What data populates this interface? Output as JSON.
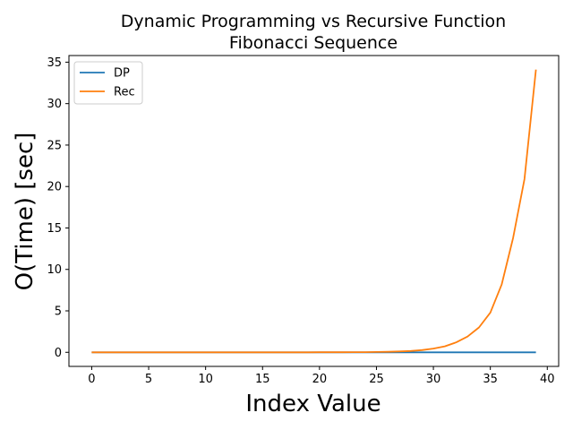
{
  "chart_data": {
    "type": "line",
    "title_line1": "Dynamic Programming vs Recursive Function",
    "title_line2": "Fibonacci Sequence",
    "xlabel": "Index Value",
    "ylabel": "O(Time) [sec]",
    "xlim": [
      -2,
      41
    ],
    "ylim": [
      -1.7,
      35.8
    ],
    "xticks": [
      "0",
      "5",
      "10",
      "15",
      "20",
      "25",
      "30",
      "35",
      "40"
    ],
    "yticks": [
      "0",
      "5",
      "10",
      "15",
      "20",
      "25",
      "30",
      "35"
    ],
    "grid": false,
    "legend_position": "top-left",
    "x": [
      0,
      1,
      2,
      3,
      4,
      5,
      6,
      7,
      8,
      9,
      10,
      11,
      12,
      13,
      14,
      15,
      16,
      17,
      18,
      19,
      20,
      21,
      22,
      23,
      24,
      25,
      26,
      27,
      28,
      29,
      30,
      31,
      32,
      33,
      34,
      35,
      36,
      37,
      38,
      39
    ],
    "series": [
      {
        "name": "DP",
        "color": "#1f77b4",
        "values": [
          0,
          0,
          0,
          0,
          0,
          0,
          0,
          0,
          0,
          0,
          0,
          0,
          0,
          0,
          0,
          0,
          0,
          0,
          0,
          0,
          0,
          0,
          0,
          0,
          0,
          0,
          0,
          0,
          0,
          0,
          0,
          0,
          0,
          0,
          0,
          0,
          0,
          0,
          0,
          0
        ]
      },
      {
        "name": "Rec",
        "color": "#ff7f0e",
        "values": [
          0,
          0,
          0,
          0,
          0,
          0,
          0,
          0,
          0,
          0,
          0,
          0,
          0,
          0,
          0,
          0,
          0,
          0,
          0.001,
          0.002,
          0.003,
          0.005,
          0.008,
          0.013,
          0.02,
          0.035,
          0.06,
          0.1,
          0.16,
          0.27,
          0.45,
          0.72,
          1.2,
          1.9,
          3.0,
          4.8,
          8.2,
          13.8,
          20.9,
          34.1
        ]
      }
    ]
  }
}
